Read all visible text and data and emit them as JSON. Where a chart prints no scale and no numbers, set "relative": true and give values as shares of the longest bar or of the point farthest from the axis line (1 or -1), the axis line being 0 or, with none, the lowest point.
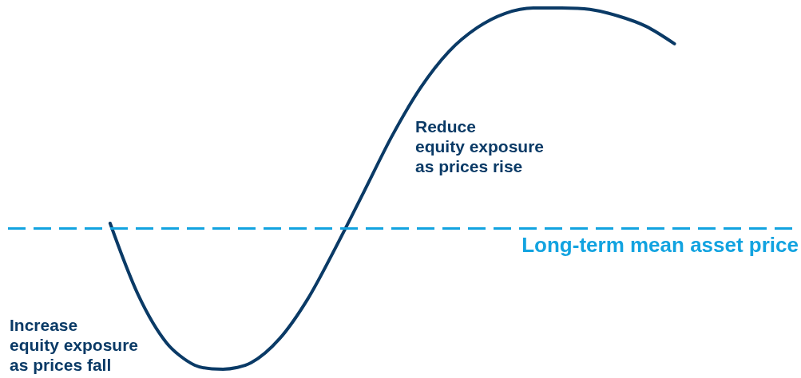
{
  "chart_data": {
    "type": "line",
    "relative": true,
    "categories": [
      null,
      null,
      null,
      null,
      null,
      null,
      null,
      null,
      null,
      null,
      null,
      null,
      null,
      null,
      null,
      null,
      null,
      null,
      null,
      null,
      null
    ],
    "series": [
      {
        "color": "#0a3a66",
        "values": [
          0.404,
          0.205,
          0.073,
          0.011,
          0,
          0.018,
          0.084,
          0.194,
          0.338,
          0.492,
          0.647,
          0.779,
          0.879,
          0.945,
          0.985,
          1,
          1,
          0.996,
          0.978,
          0.949,
          0.901
        ]
      }
    ],
    "ref_lines": [
      {
        "axis": "y",
        "value": 0.389,
        "label": "Long-term mean asset price",
        "color": "#12a3e0",
        "line_style": "dashed"
      }
    ],
    "annotations": [
      "Reduce\nequity exposure\nas prices rise",
      "Increase\nequity exposure\nas prices fall"
    ],
    "marker": "none",
    "line_style": "solid"
  }
}
